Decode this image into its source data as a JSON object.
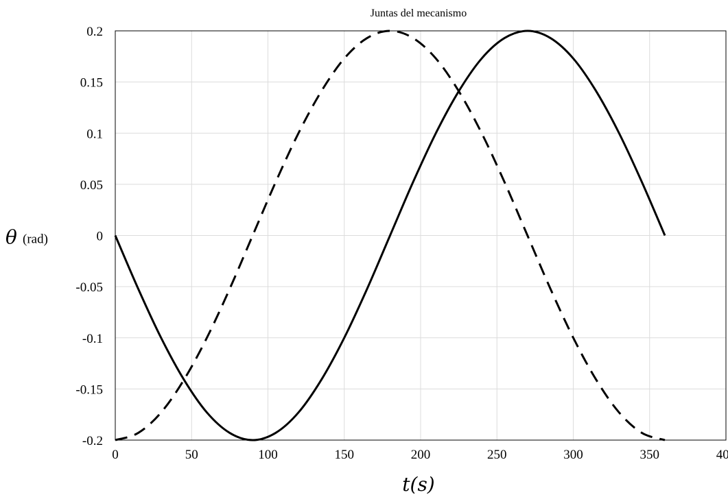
{
  "chart_data": {
    "type": "line",
    "title": "Juntas del mecanismo",
    "xlabel": "t(s)",
    "ylabel": {
      "symbol": "θ",
      "unit": "(rad)"
    },
    "xlim": [
      0,
      400
    ],
    "ylim": [
      -0.2,
      0.2
    ],
    "xticks": [
      0,
      50,
      100,
      150,
      200,
      250,
      300,
      350,
      400
    ],
    "xtick_labels": [
      "0",
      "50",
      "100",
      "150",
      "200",
      "250",
      "300",
      "350",
      "400"
    ],
    "yticks": [
      0.2,
      0.15,
      0.1,
      0.05,
      0,
      -0.05,
      -0.1,
      -0.15,
      -0.2
    ],
    "ytick_labels": [
      "0.2",
      "0.15",
      "0.1",
      "0.05",
      "0",
      "-0.05",
      "-0.1",
      "-0.15",
      "-0.2"
    ],
    "grid": true,
    "legend": "none",
    "series": [
      {
        "style": "solid",
        "color": "#000000",
        "x": [
          0,
          15,
          30,
          45,
          60,
          75,
          90,
          105,
          120,
          135,
          150,
          165,
          180,
          195,
          210,
          225,
          240,
          255,
          270,
          285,
          300,
          315,
          330,
          345,
          360
        ],
        "y": [
          0,
          -0.052,
          -0.1,
          -0.141,
          -0.173,
          -0.193,
          -0.2,
          -0.193,
          -0.173,
          -0.141,
          -0.1,
          -0.052,
          0,
          0.052,
          0.1,
          0.141,
          0.173,
          0.193,
          0.2,
          0.193,
          0.173,
          0.141,
          0.1,
          0.052,
          0
        ]
      },
      {
        "style": "dashed",
        "color": "#000000",
        "x": [
          0,
          15,
          30,
          45,
          60,
          75,
          90,
          105,
          120,
          135,
          150,
          165,
          180,
          195,
          210,
          225,
          240,
          255,
          270,
          285,
          300,
          315,
          330,
          345,
          360
        ],
        "y": [
          -0.2,
          -0.193,
          -0.173,
          -0.141,
          -0.1,
          -0.052,
          0,
          0.052,
          0.1,
          0.141,
          0.173,
          0.193,
          0.2,
          0.193,
          0.173,
          0.141,
          0.1,
          0.052,
          0,
          -0.052,
          -0.1,
          -0.141,
          -0.173,
          -0.193,
          -0.2
        ]
      }
    ]
  }
}
